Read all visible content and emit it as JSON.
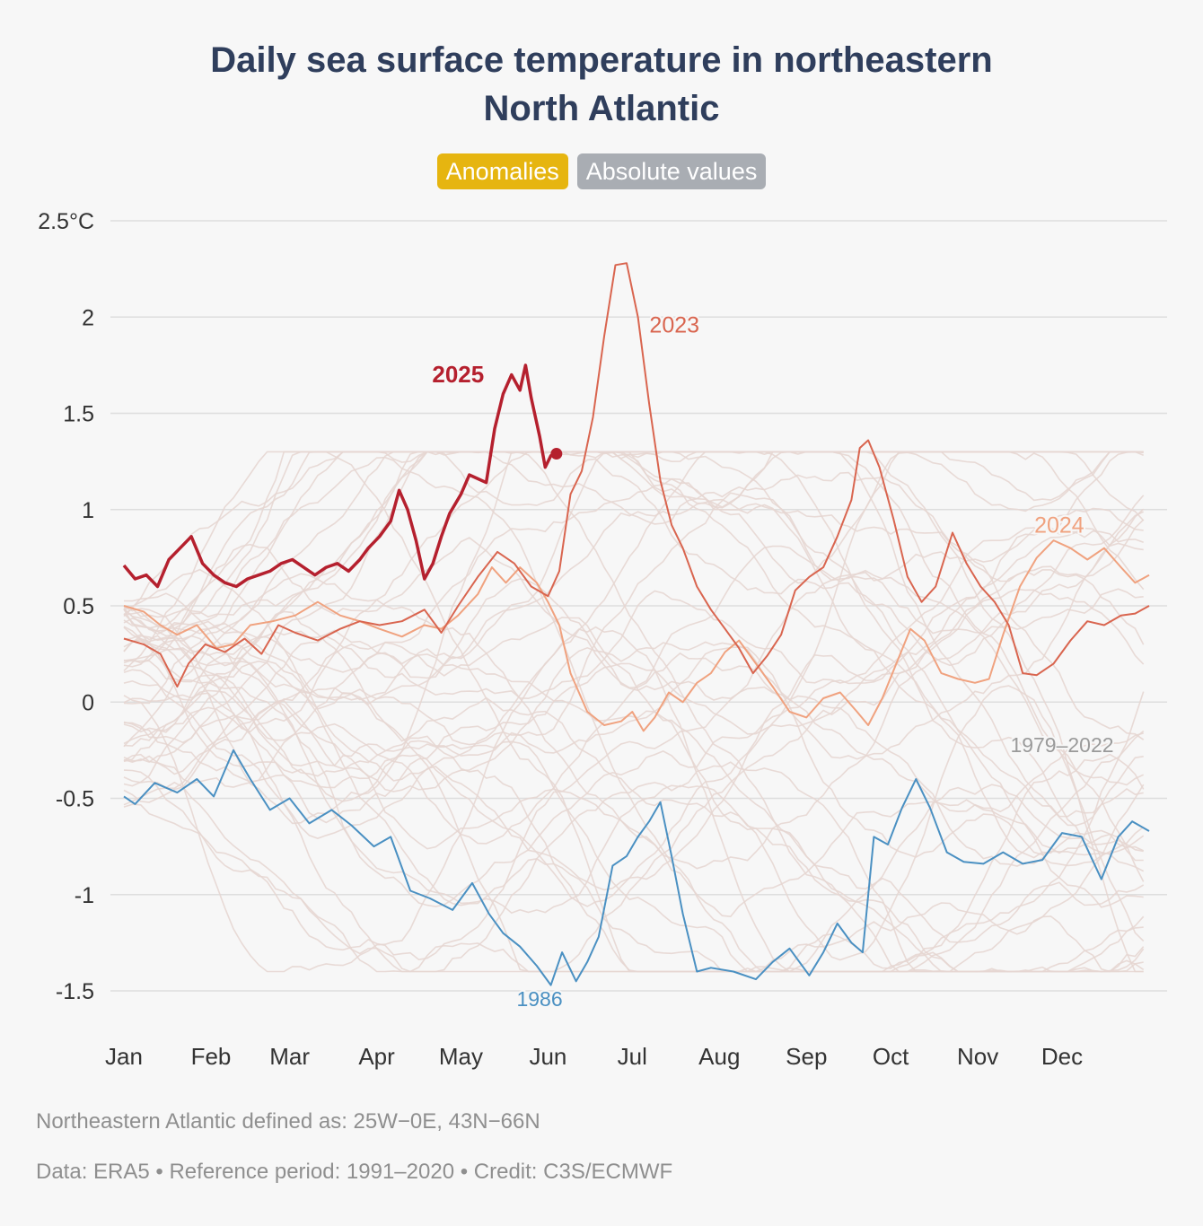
{
  "title_line1": "Daily sea surface temperature in northeastern",
  "title_line2": "North Atlantic",
  "toggles": {
    "anomalies": "Anomalies",
    "absolute": "Absolute values"
  },
  "footnotes": {
    "region": "Northeastern Atlantic defined as: 25W−0E, 43N−66N",
    "credit": "Data: ERA5 • Reference period: 1991–2020 • Credit: C3S/ECMWF"
  },
  "colors": {
    "y2025": "#b5202e",
    "y2023": "#d9654f",
    "y2024": "#f0a27f",
    "y1986": "#4a90c2",
    "background_years": "#e6d6d2",
    "grid": "#dedede"
  },
  "chart_data": {
    "type": "line",
    "x_unit": "day of year",
    "x_ticks": [
      {
        "label": "Jan",
        "day": 1
      },
      {
        "label": "Feb",
        "day": 32
      },
      {
        "label": "Mar",
        "day": 60
      },
      {
        "label": "Apr",
        "day": 91
      },
      {
        "label": "May",
        "day": 121
      },
      {
        "label": "Jun",
        "day": 152
      },
      {
        "label": "Jul",
        "day": 182
      },
      {
        "label": "Aug",
        "day": 213
      },
      {
        "label": "Sep",
        "day": 244
      },
      {
        "label": "Oct",
        "day": 274
      },
      {
        "label": "Nov",
        "day": 305
      },
      {
        "label": "Dec",
        "day": 335
      }
    ],
    "y_ticks": [
      {
        "label": "2.5°C",
        "value": 2.5
      },
      {
        "label": "2",
        "value": 2
      },
      {
        "label": "1.5",
        "value": 1.5
      },
      {
        "label": "1",
        "value": 1
      },
      {
        "label": "0.5",
        "value": 0.5
      },
      {
        "label": "0",
        "value": 0
      },
      {
        "label": "-0.5",
        "value": -0.5
      },
      {
        "label": "-1",
        "value": -1
      },
      {
        "label": "-1.5",
        "value": -1.5
      }
    ],
    "xlim": [
      1,
      366
    ],
    "ylim": [
      -1.5,
      2.5
    ],
    "series": [
      {
        "name": "1979–2022",
        "key": "background",
        "envelope": {
          "mean": 0.0,
          "spread": 0.55
        }
      },
      {
        "name": "1986",
        "key": "y1986",
        "points": [
          [
            1,
            -0.49
          ],
          [
            5,
            -0.53
          ],
          [
            12,
            -0.42
          ],
          [
            20,
            -0.47
          ],
          [
            27,
            -0.4
          ],
          [
            33,
            -0.49
          ],
          [
            40,
            -0.25
          ],
          [
            46,
            -0.4
          ],
          [
            53,
            -0.56
          ],
          [
            60,
            -0.5
          ],
          [
            67,
            -0.63
          ],
          [
            75,
            -0.56
          ],
          [
            82,
            -0.64
          ],
          [
            90,
            -0.75
          ],
          [
            96,
            -0.7
          ],
          [
            103,
            -0.98
          ],
          [
            110,
            -1.02
          ],
          [
            118,
            -1.08
          ],
          [
            125,
            -0.94
          ],
          [
            131,
            -1.1
          ],
          [
            136,
            -1.2
          ],
          [
            142,
            -1.27
          ],
          [
            148,
            -1.37
          ],
          [
            153,
            -1.47
          ],
          [
            157,
            -1.3
          ],
          [
            162,
            -1.45
          ],
          [
            166,
            -1.35
          ],
          [
            170,
            -1.22
          ],
          [
            175,
            -0.85
          ],
          [
            180,
            -0.8
          ],
          [
            184,
            -0.7
          ],
          [
            188,
            -0.62
          ],
          [
            192,
            -0.52
          ],
          [
            196,
            -0.8
          ],
          [
            200,
            -1.1
          ],
          [
            205,
            -1.4
          ],
          [
            210,
            -1.38
          ],
          [
            218,
            -1.4
          ],
          [
            226,
            -1.44
          ],
          [
            232,
            -1.35
          ],
          [
            238,
            -1.28
          ],
          [
            245,
            -1.42
          ],
          [
            250,
            -1.3
          ],
          [
            255,
            -1.15
          ],
          [
            260,
            -1.25
          ],
          [
            264,
            -1.3
          ],
          [
            268,
            -0.7
          ],
          [
            273,
            -0.74
          ],
          [
            278,
            -0.55
          ],
          [
            283,
            -0.4
          ],
          [
            288,
            -0.55
          ],
          [
            294,
            -0.78
          ],
          [
            300,
            -0.83
          ],
          [
            307,
            -0.84
          ],
          [
            314,
            -0.78
          ],
          [
            321,
            -0.84
          ],
          [
            328,
            -0.82
          ],
          [
            335,
            -0.68
          ],
          [
            342,
            -0.7
          ],
          [
            349,
            -0.92
          ],
          [
            355,
            -0.7
          ],
          [
            360,
            -0.62
          ],
          [
            366,
            -0.67
          ]
        ]
      },
      {
        "name": "2023",
        "key": "y2023",
        "points": [
          [
            1,
            0.33
          ],
          [
            8,
            0.3
          ],
          [
            14,
            0.25
          ],
          [
            20,
            0.08
          ],
          [
            24,
            0.2
          ],
          [
            30,
            0.3
          ],
          [
            37,
            0.26
          ],
          [
            44,
            0.33
          ],
          [
            50,
            0.25
          ],
          [
            56,
            0.4
          ],
          [
            62,
            0.36
          ],
          [
            70,
            0.32
          ],
          [
            78,
            0.38
          ],
          [
            85,
            0.42
          ],
          [
            92,
            0.4
          ],
          [
            100,
            0.42
          ],
          [
            108,
            0.48
          ],
          [
            114,
            0.36
          ],
          [
            120,
            0.5
          ],
          [
            127,
            0.65
          ],
          [
            134,
            0.78
          ],
          [
            140,
            0.72
          ],
          [
            146,
            0.6
          ],
          [
            152,
            0.55
          ],
          [
            156,
            0.68
          ],
          [
            160,
            1.08
          ],
          [
            164,
            1.2
          ],
          [
            168,
            1.48
          ],
          [
            172,
            1.9
          ],
          [
            176,
            2.27
          ],
          [
            180,
            2.28
          ],
          [
            184,
            2.0
          ],
          [
            188,
            1.55
          ],
          [
            192,
            1.15
          ],
          [
            196,
            0.92
          ],
          [
            200,
            0.8
          ],
          [
            205,
            0.6
          ],
          [
            210,
            0.48
          ],
          [
            215,
            0.38
          ],
          [
            220,
            0.28
          ],
          [
            225,
            0.15
          ],
          [
            230,
            0.24
          ],
          [
            235,
            0.35
          ],
          [
            240,
            0.58
          ],
          [
            245,
            0.65
          ],
          [
            250,
            0.7
          ],
          [
            255,
            0.86
          ],
          [
            260,
            1.05
          ],
          [
            263,
            1.32
          ],
          [
            266,
            1.36
          ],
          [
            270,
            1.22
          ],
          [
            275,
            0.95
          ],
          [
            280,
            0.65
          ],
          [
            285,
            0.52
          ],
          [
            290,
            0.6
          ],
          [
            296,
            0.88
          ],
          [
            301,
            0.72
          ],
          [
            306,
            0.6
          ],
          [
            311,
            0.52
          ],
          [
            316,
            0.4
          ],
          [
            321,
            0.15
          ],
          [
            326,
            0.14
          ],
          [
            332,
            0.2
          ],
          [
            338,
            0.32
          ],
          [
            344,
            0.42
          ],
          [
            350,
            0.4
          ],
          [
            356,
            0.45
          ],
          [
            361,
            0.46
          ],
          [
            366,
            0.5
          ]
        ]
      },
      {
        "name": "2024",
        "key": "y2024",
        "points": [
          [
            1,
            0.5
          ],
          [
            8,
            0.47
          ],
          [
            14,
            0.4
          ],
          [
            20,
            0.35
          ],
          [
            27,
            0.4
          ],
          [
            34,
            0.28
          ],
          [
            40,
            0.3
          ],
          [
            46,
            0.4
          ],
          [
            54,
            0.42
          ],
          [
            62,
            0.45
          ],
          [
            70,
            0.52
          ],
          [
            78,
            0.45
          ],
          [
            85,
            0.42
          ],
          [
            92,
            0.38
          ],
          [
            100,
            0.34
          ],
          [
            108,
            0.4
          ],
          [
            114,
            0.38
          ],
          [
            120,
            0.45
          ],
          [
            127,
            0.56
          ],
          [
            132,
            0.7
          ],
          [
            137,
            0.62
          ],
          [
            142,
            0.7
          ],
          [
            148,
            0.62
          ],
          [
            152,
            0.52
          ],
          [
            156,
            0.4
          ],
          [
            160,
            0.15
          ],
          [
            166,
            -0.05
          ],
          [
            172,
            -0.12
          ],
          [
            178,
            -0.1
          ],
          [
            182,
            -0.05
          ],
          [
            186,
            -0.15
          ],
          [
            190,
            -0.08
          ],
          [
            195,
            0.05
          ],
          [
            200,
            0.0
          ],
          [
            205,
            0.1
          ],
          [
            210,
            0.15
          ],
          [
            215,
            0.26
          ],
          [
            220,
            0.32
          ],
          [
            226,
            0.2
          ],
          [
            232,
            0.08
          ],
          [
            238,
            -0.05
          ],
          [
            244,
            -0.08
          ],
          [
            250,
            0.02
          ],
          [
            256,
            0.05
          ],
          [
            262,
            -0.05
          ],
          [
            266,
            -0.12
          ],
          [
            271,
            0.02
          ],
          [
            276,
            0.2
          ],
          [
            281,
            0.38
          ],
          [
            286,
            0.32
          ],
          [
            292,
            0.15
          ],
          [
            298,
            0.12
          ],
          [
            304,
            0.1
          ],
          [
            309,
            0.12
          ],
          [
            314,
            0.35
          ],
          [
            320,
            0.6
          ],
          [
            326,
            0.75
          ],
          [
            332,
            0.84
          ],
          [
            338,
            0.8
          ],
          [
            344,
            0.74
          ],
          [
            350,
            0.8
          ],
          [
            356,
            0.7
          ],
          [
            361,
            0.62
          ],
          [
            366,
            0.66
          ]
        ]
      },
      {
        "name": "2025",
        "key": "y2025",
        "points": [
          [
            1,
            0.71
          ],
          [
            5,
            0.64
          ],
          [
            9,
            0.66
          ],
          [
            13,
            0.6
          ],
          [
            17,
            0.74
          ],
          [
            21,
            0.8
          ],
          [
            25,
            0.86
          ],
          [
            29,
            0.72
          ],
          [
            33,
            0.66
          ],
          [
            37,
            0.62
          ],
          [
            41,
            0.6
          ],
          [
            45,
            0.64
          ],
          [
            49,
            0.66
          ],
          [
            53,
            0.68
          ],
          [
            57,
            0.72
          ],
          [
            61,
            0.74
          ],
          [
            65,
            0.7
          ],
          [
            69,
            0.66
          ],
          [
            73,
            0.7
          ],
          [
            77,
            0.72
          ],
          [
            81,
            0.68
          ],
          [
            85,
            0.74
          ],
          [
            88,
            0.8
          ],
          [
            92,
            0.86
          ],
          [
            96,
            0.94
          ],
          [
            99,
            1.1
          ],
          [
            102,
            1.0
          ],
          [
            105,
            0.84
          ],
          [
            108,
            0.64
          ],
          [
            111,
            0.72
          ],
          [
            114,
            0.86
          ],
          [
            117,
            0.98
          ],
          [
            121,
            1.08
          ],
          [
            124,
            1.18
          ],
          [
            127,
            1.16
          ],
          [
            130,
            1.14
          ],
          [
            133,
            1.42
          ],
          [
            136,
            1.6
          ],
          [
            139,
            1.7
          ],
          [
            142,
            1.62
          ],
          [
            144,
            1.75
          ],
          [
            146,
            1.58
          ],
          [
            149,
            1.38
          ],
          [
            151,
            1.22
          ],
          [
            153,
            1.28
          ],
          [
            155,
            1.29
          ]
        ]
      }
    ],
    "labels": {
      "y2025": "2025",
      "y2023": "2023",
      "y2024": "2024",
      "y1986": "1986",
      "background": "1979–2022"
    }
  }
}
